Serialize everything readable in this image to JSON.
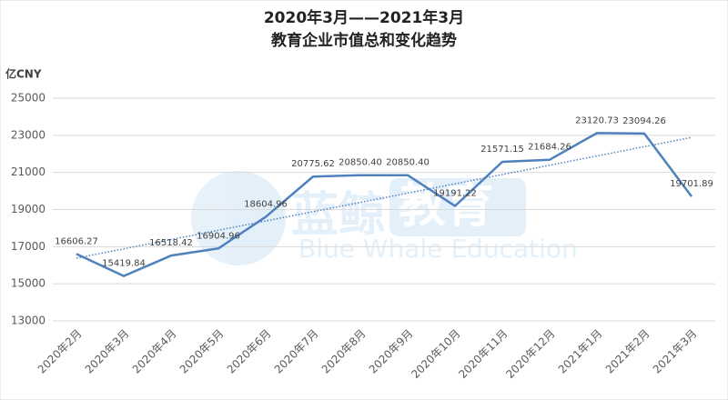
{
  "chart_data": {
    "type": "line",
    "title": "2020年3月——2021年3月",
    "subtitle": "教育企业市值总和变化趋势",
    "y_label": "亿CNY",
    "categories": [
      "2020年2月",
      "2020年3月",
      "2020年4月",
      "2020年5月",
      "2020年6月",
      "2020年7月",
      "2020年8月",
      "2020年9月",
      "2020年10月",
      "2020年11月",
      "2020年12月",
      "2021年1月",
      "2021年2月",
      "2021年3月"
    ],
    "series": [
      {
        "name": "市值总和",
        "color": "#4f81bd",
        "values": [
          16606.27,
          15419.84,
          16518.42,
          16904.96,
          18604.96,
          20775.62,
          20850.4,
          20850.4,
          19191.22,
          21571.15,
          21684.26,
          23120.73,
          23094.26,
          19701.89
        ],
        "value_labels": [
          "16606.27",
          "15419.84",
          "16518.42",
          "16904.96",
          "18604.96",
          "20775.62",
          "20850.40",
          "20850.40",
          "19191.22",
          "21571.15",
          "21684.26",
          "23120.73",
          "23094.26",
          "19701.89"
        ]
      }
    ],
    "trendline": true,
    "ylim": [
      13000,
      25000
    ],
    "yticks": [
      13000,
      15000,
      17000,
      19000,
      21000,
      23000,
      25000
    ],
    "grid": true
  },
  "watermark": {
    "brand": "蓝鲸",
    "word": "教育",
    "english": "Blue Whale Education"
  }
}
